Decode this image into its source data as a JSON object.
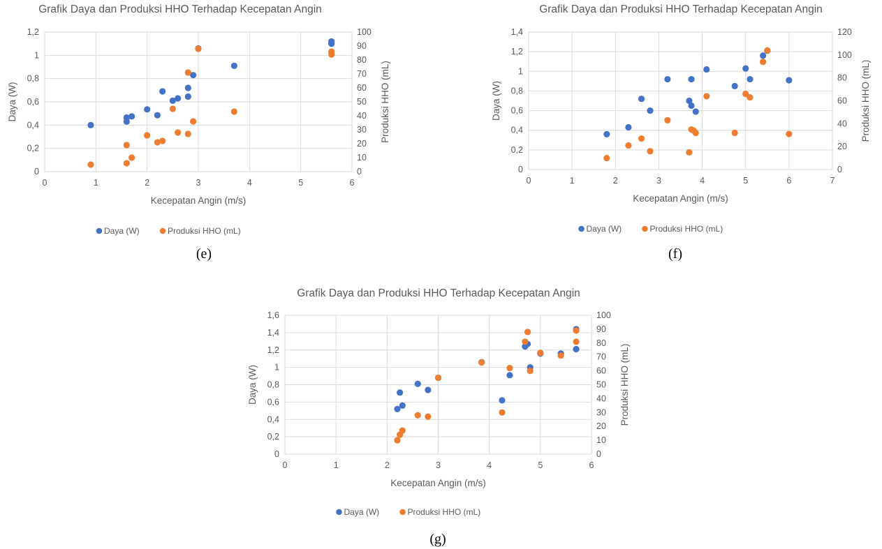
{
  "charts": [
    {
      "id": "e",
      "chart_data": {
        "type": "scatter",
        "title": "Grafik Daya dan Produksi HHO Terhadap Kecepatan Angin",
        "xlabel": "Kecepatan Angin (m/s)",
        "ylabel": "Daya (W)",
        "y2label": "Produksi HHO (mL)",
        "xlim": [
          0,
          6
        ],
        "xstep": 1,
        "ylim": [
          0,
          1.2
        ],
        "ystep": 0.2,
        "y2lim": [
          0,
          100
        ],
        "y2step": 10,
        "xticks": [
          "0",
          "1",
          "2",
          "3",
          "4",
          "5",
          "6"
        ],
        "yticks": [
          "0",
          "0,2",
          "0,4",
          "0,6",
          "0,8",
          "1",
          "1,2"
        ],
        "y2ticks": [
          "0",
          "10",
          "20",
          "30",
          "40",
          "50",
          "60",
          "70",
          "80",
          "90",
          "100"
        ],
        "grid": true,
        "legend": "bottom",
        "series": [
          {
            "name": "Daya (W)",
            "axis": "left",
            "color": "#4472C4",
            "points": [
              [
                0.9,
                0.4
              ],
              [
                1.6,
                0.43
              ],
              [
                1.6,
                0.465
              ],
              [
                1.7,
                0.475
              ],
              [
                2.0,
                0.535
              ],
              [
                2.2,
                0.485
              ],
              [
                2.3,
                0.69
              ],
              [
                2.5,
                0.61
              ],
              [
                2.6,
                0.63
              ],
              [
                2.8,
                0.645
              ],
              [
                2.8,
                0.72
              ],
              [
                2.9,
                0.83
              ],
              [
                3.0,
                1.06
              ],
              [
                3.7,
                0.91
              ],
              [
                5.6,
                1.1
              ],
              [
                5.6,
                1.12
              ]
            ]
          },
          {
            "name": "Produksi HHO (mL)",
            "axis": "right",
            "color": "#ED7D31",
            "points": [
              [
                0.9,
                5
              ],
              [
                1.6,
                6
              ],
              [
                1.6,
                19
              ],
              [
                1.7,
                10
              ],
              [
                2.0,
                26
              ],
              [
                2.2,
                21
              ],
              [
                2.3,
                22
              ],
              [
                2.5,
                45
              ],
              [
                2.6,
                28
              ],
              [
                2.8,
                27
              ],
              [
                2.8,
                71
              ],
              [
                2.9,
                36
              ],
              [
                3.0,
                88
              ],
              [
                3.7,
                43
              ],
              [
                5.6,
                84
              ],
              [
                5.6,
                86
              ]
            ]
          }
        ]
      },
      "caption": "(e)"
    },
    {
      "id": "f",
      "chart_data": {
        "type": "scatter",
        "title": "Grafik Daya dan Produksi HHO Terhadap Kecepatan Angin",
        "xlabel": "Kecepatan Angin (m/s)",
        "ylabel": "Daya (W)",
        "y2label": "Produksi HHO (mL)",
        "xlim": [
          0,
          7
        ],
        "xstep": 1,
        "ylim": [
          0,
          1.4
        ],
        "ystep": 0.2,
        "y2lim": [
          0,
          120
        ],
        "y2step": 20,
        "xticks": [
          "0",
          "1",
          "2",
          "3",
          "4",
          "5",
          "6",
          "7"
        ],
        "yticks": [
          "0",
          "0,2",
          "0,4",
          "0,6",
          "0,8",
          "1",
          "1,2",
          "1,4"
        ],
        "y2ticks": [
          "0",
          "20",
          "40",
          "60",
          "80",
          "100",
          "120"
        ],
        "grid": true,
        "legend": "bottom",
        "series": [
          {
            "name": "Daya (W)",
            "axis": "left",
            "color": "#4472C4",
            "points": [
              [
                1.8,
                0.36
              ],
              [
                2.3,
                0.43
              ],
              [
                2.6,
                0.72
              ],
              [
                2.8,
                0.6
              ],
              [
                3.2,
                0.92
              ],
              [
                3.7,
                0.7
              ],
              [
                3.75,
                0.65
              ],
              [
                3.75,
                0.92
              ],
              [
                3.85,
                0.59
              ],
              [
                4.1,
                1.02
              ],
              [
                4.75,
                0.85
              ],
              [
                5.0,
                1.03
              ],
              [
                5.1,
                0.92
              ],
              [
                5.4,
                1.16
              ],
              [
                5.5,
                1.21
              ],
              [
                6.0,
                0.91
              ]
            ]
          },
          {
            "name": "Produksi HHO (mL)",
            "axis": "right",
            "color": "#ED7D31",
            "points": [
              [
                1.8,
                10
              ],
              [
                2.3,
                21
              ],
              [
                2.6,
                27
              ],
              [
                2.8,
                16
              ],
              [
                3.2,
                43
              ],
              [
                3.7,
                15
              ],
              [
                3.75,
                35
              ],
              [
                3.8,
                34
              ],
              [
                3.85,
                32
              ],
              [
                4.1,
                64
              ],
              [
                4.75,
                32
              ],
              [
                5.0,
                66
              ],
              [
                5.1,
                63
              ],
              [
                5.4,
                94
              ],
              [
                5.5,
                104
              ],
              [
                6.0,
                31
              ]
            ]
          }
        ]
      },
      "caption": "(f)"
    },
    {
      "id": "g",
      "chart_data": {
        "type": "scatter",
        "title": "Grafik Daya dan Produksi HHO Terhadap Kecepatan Angin",
        "xlabel": "Kecepatan Angin (m/s)",
        "ylabel": "Daya (W)",
        "y2label": "Produksi HHO (mL)",
        "xlim": [
          0,
          6
        ],
        "xstep": 1,
        "ylim": [
          0,
          1.6
        ],
        "ystep": 0.2,
        "y2lim": [
          0,
          100
        ],
        "y2step": 10,
        "xticks": [
          "0",
          "1",
          "2",
          "3",
          "4",
          "5",
          "6"
        ],
        "yticks": [
          "0",
          "0,2",
          "0,4",
          "0,6",
          "0,8",
          "1",
          "1,2",
          "1,4",
          "1,6"
        ],
        "y2ticks": [
          "0",
          "10",
          "20",
          "30",
          "40",
          "50",
          "60",
          "70",
          "80",
          "90",
          "100"
        ],
        "grid": true,
        "legend": "bottom",
        "series": [
          {
            "name": "Daya (W)",
            "axis": "left",
            "color": "#4472C4",
            "points": [
              [
                2.2,
                0.52
              ],
              [
                2.25,
                0.71
              ],
              [
                2.3,
                0.56
              ],
              [
                2.6,
                0.81
              ],
              [
                2.8,
                0.74
              ],
              [
                3.0,
                0.88
              ],
              [
                3.85,
                1.06
              ],
              [
                4.25,
                0.62
              ],
              [
                4.4,
                0.91
              ],
              [
                4.7,
                1.24
              ],
              [
                4.75,
                1.27
              ],
              [
                4.8,
                1.0
              ],
              [
                5.0,
                1.16
              ],
              [
                5.4,
                1.16
              ],
              [
                5.7,
                1.21
              ],
              [
                5.7,
                1.44
              ]
            ]
          },
          {
            "name": "Produksi HHO (mL)",
            "axis": "right",
            "color": "#ED7D31",
            "points": [
              [
                2.2,
                10
              ],
              [
                2.25,
                14
              ],
              [
                2.3,
                17
              ],
              [
                2.6,
                28
              ],
              [
                2.8,
                27
              ],
              [
                3.0,
                55
              ],
              [
                3.85,
                66
              ],
              [
                4.25,
                30
              ],
              [
                4.4,
                62
              ],
              [
                4.7,
                81
              ],
              [
                4.75,
                88
              ],
              [
                4.8,
                60
              ],
              [
                5.0,
                73
              ],
              [
                5.4,
                71
              ],
              [
                5.7,
                81
              ],
              [
                5.7,
                89
              ]
            ]
          }
        ]
      },
      "caption": "(g)"
    }
  ]
}
